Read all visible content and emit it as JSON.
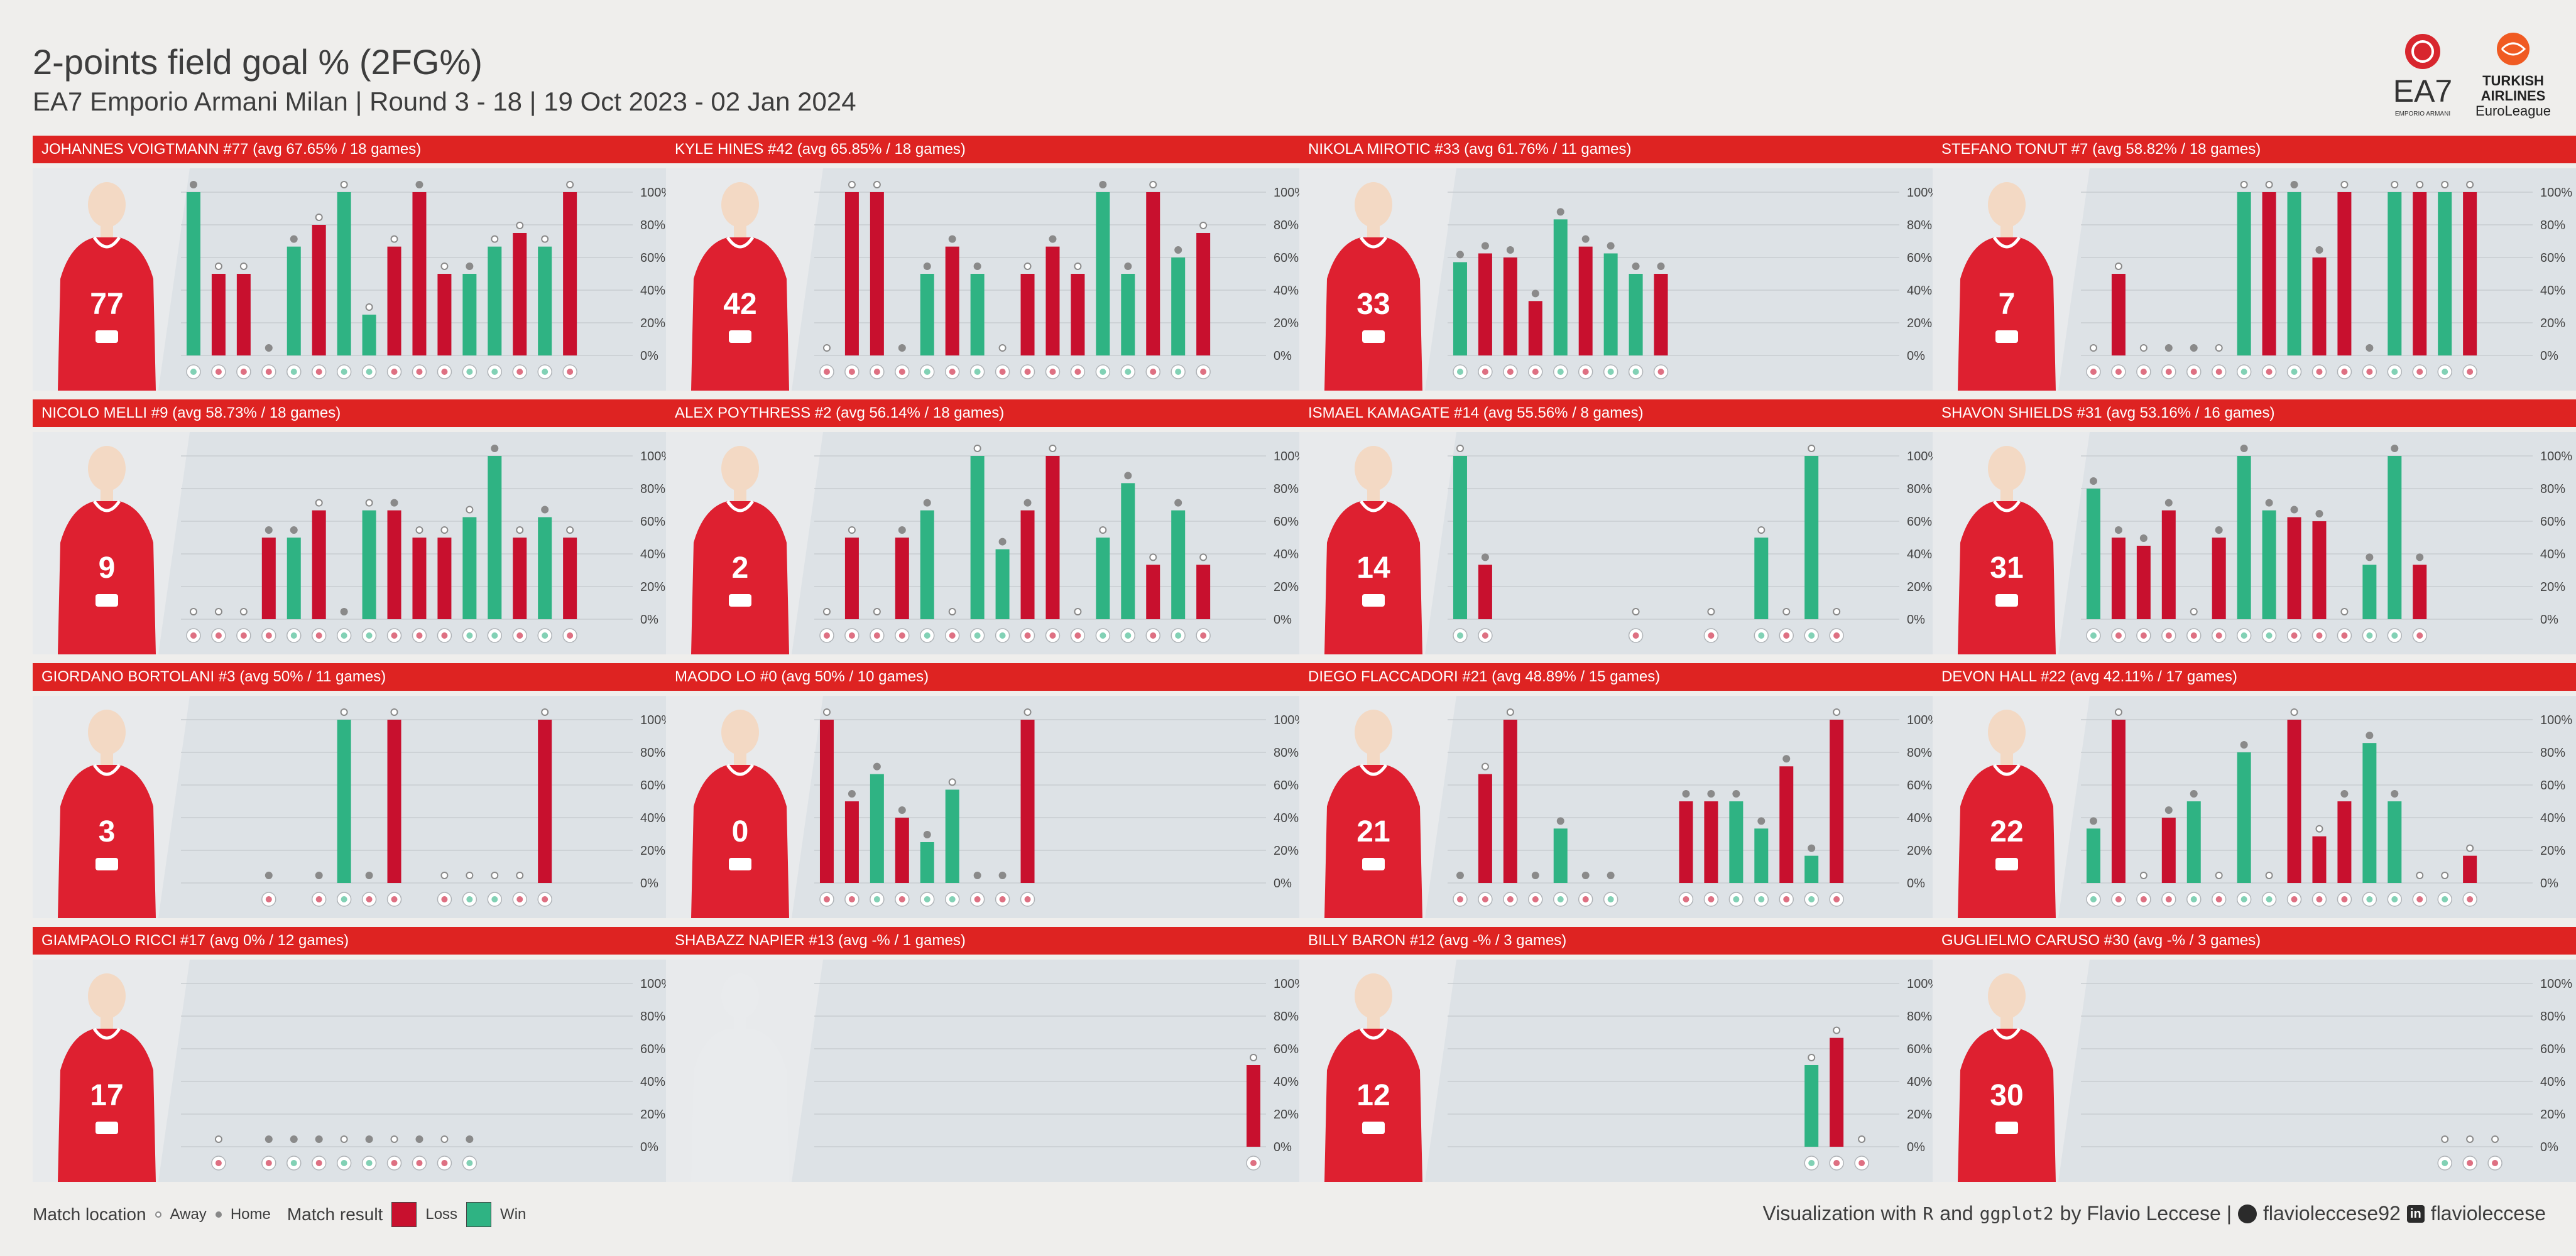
{
  "header": {
    "title": "2-points field goal % (2FG%)",
    "subtitle": "EA7 Emporio Armani Milan | Round 3 - 18 | 19 Oct 2023 - 02 Jan 2024"
  },
  "logos": {
    "left_text": "EA7",
    "left_sub": "EMPORIO ARMANI",
    "right_text_1": "TURKISH",
    "right_text_2": "AIRLINES",
    "right_text_3": "EuroLeague"
  },
  "colors": {
    "loss": "#c8102e",
    "win": "#2fb383",
    "header": "#de2322",
    "panel_bg": "#e3e7ea",
    "jersey": "#de2030"
  },
  "axis_ticks": [
    "0%",
    "20%",
    "40%",
    "60%",
    "80%",
    "100%"
  ],
  "chart_data": [
    {
      "type": "bar",
      "title": "JOHANNES VOIGTMANN #77 (avg 67.65% / 18 games)",
      "jersey": "77",
      "ylim": [
        0,
        100
      ],
      "x": [
        1,
        2,
        3,
        4,
        5,
        6,
        7,
        8,
        9,
        10,
        11,
        12,
        13,
        14,
        15,
        16,
        17,
        18
      ],
      "values": [
        100,
        50,
        50,
        0,
        66.67,
        80,
        100,
        25,
        66.67,
        100,
        50,
        50,
        66.67,
        75,
        66.67,
        100,
        null,
        null
      ],
      "results": [
        "W",
        "L",
        "L",
        "L",
        "W",
        "L",
        "W",
        "W",
        "L",
        "L",
        "L",
        "W",
        "W",
        "L",
        "W",
        "L",
        null,
        null
      ],
      "location": [
        "H",
        "A",
        "A",
        "H",
        "H",
        "A",
        "A",
        "A",
        "A",
        "H",
        "A",
        "H",
        "A",
        "A",
        "A",
        "A",
        null,
        null
      ]
    },
    {
      "type": "bar",
      "title": "KYLE HINES #42 (avg 65.85% / 18 games)",
      "jersey": "42",
      "ylim": [
        0,
        100
      ],
      "x": [
        1,
        2,
        3,
        4,
        5,
        6,
        7,
        8,
        9,
        10,
        11,
        12,
        13,
        14,
        15,
        16,
        17,
        18
      ],
      "values": [
        0,
        100,
        100,
        0,
        50,
        66.67,
        50,
        0,
        50,
        66.67,
        50,
        100,
        50,
        100,
        60,
        75,
        null,
        null
      ],
      "results": [
        "L",
        "L",
        "L",
        "L",
        "W",
        "L",
        "W",
        "L",
        "L",
        "L",
        "L",
        "W",
        "W",
        "L",
        "W",
        "L",
        null,
        null
      ],
      "location": [
        "A",
        "A",
        "A",
        "H",
        "H",
        "H",
        "H",
        "A",
        "A",
        "H",
        "A",
        "H",
        "H",
        "A",
        "H",
        "A",
        null,
        null
      ]
    },
    {
      "type": "bar",
      "title": "NIKOLA MIROTIC #33 (avg 61.76% / 11 games)",
      "jersey": "33",
      "ylim": [
        0,
        100
      ],
      "x": [
        1,
        2,
        3,
        4,
        5,
        6,
        7,
        8,
        9,
        10,
        11
      ],
      "values": [
        57.14,
        62.5,
        60,
        33.33,
        83.33,
        66.67,
        62.5,
        50,
        50,
        null,
        null
      ],
      "results": [
        "W",
        "L",
        "L",
        "L",
        "W",
        "L",
        "W",
        "W",
        "L",
        null,
        null
      ],
      "location": [
        "H",
        "H",
        "H",
        "H",
        "H",
        "H",
        "H",
        "H",
        "H",
        null,
        null
      ]
    },
    {
      "type": "bar",
      "title": "STEFANO TONUT #7 (avg 58.82% / 18 games)",
      "jersey": "7",
      "ylim": [
        0,
        100
      ],
      "x": [
        1,
        2,
        3,
        4,
        5,
        6,
        7,
        8,
        9,
        10,
        11,
        12,
        13,
        14,
        15,
        16,
        17,
        18
      ],
      "values": [
        0,
        50,
        0,
        0,
        0,
        0,
        100,
        100,
        100,
        60,
        100,
        0,
        100,
        100,
        100,
        100,
        null,
        null
      ],
      "results": [
        "L",
        "L",
        "L",
        "L",
        "L",
        "L",
        "W",
        "L",
        "W",
        "L",
        "L",
        "L",
        "W",
        "L",
        "W",
        "L",
        null,
        null
      ],
      "location": [
        "A",
        "A",
        "A",
        "H",
        "H",
        "A",
        "A",
        "A",
        "H",
        "H",
        "A",
        "H",
        "A",
        "A",
        "A",
        "A",
        null,
        null
      ]
    },
    {
      "type": "bar",
      "title": "NICOLO MELLI #9 (avg 58.73% / 18 games)",
      "jersey": "9",
      "ylim": [
        0,
        100
      ],
      "x": [
        1,
        2,
        3,
        4,
        5,
        6,
        7,
        8,
        9,
        10,
        11,
        12,
        13,
        14,
        15,
        16,
        17,
        18
      ],
      "values": [
        0,
        0,
        0,
        50,
        50,
        66.67,
        0,
        66.67,
        66.67,
        50,
        50,
        62.5,
        100,
        50,
        62.5,
        50,
        null,
        null
      ],
      "results": [
        "L",
        "L",
        "L",
        "L",
        "W",
        "L",
        "W",
        "W",
        "L",
        "L",
        "L",
        "W",
        "W",
        "L",
        "W",
        "L",
        null,
        null
      ],
      "location": [
        "A",
        "A",
        "A",
        "H",
        "H",
        "A",
        "H",
        "A",
        "H",
        "A",
        "A",
        "A",
        "H",
        "A",
        "H",
        "A",
        null,
        null
      ]
    },
    {
      "type": "bar",
      "title": "ALEX POYTHRESS #2 (avg 56.14% / 18 games)",
      "jersey": "2",
      "ylim": [
        0,
        100
      ],
      "x": [
        1,
        2,
        3,
        4,
        5,
        6,
        7,
        8,
        9,
        10,
        11,
        12,
        13,
        14,
        15,
        16,
        17,
        18
      ],
      "values": [
        0,
        50,
        0,
        50,
        66.67,
        0,
        100,
        42.86,
        66.67,
        100,
        0,
        50,
        83.33,
        33.33,
        66.67,
        33.33,
        null,
        null
      ],
      "results": [
        "L",
        "L",
        "L",
        "L",
        "W",
        "L",
        "W",
        "W",
        "L",
        "L",
        "L",
        "W",
        "W",
        "L",
        "W",
        "L",
        null,
        null
      ],
      "location": [
        "A",
        "A",
        "A",
        "H",
        "H",
        "A",
        "A",
        "H",
        "H",
        "A",
        "A",
        "A",
        "H",
        "A",
        "H",
        "A",
        null,
        null
      ]
    },
    {
      "type": "bar",
      "title": "ISMAEL KAMAGATE #14 (avg 55.56% / 8 games)",
      "jersey": "14",
      "ylim": [
        0,
        100
      ],
      "x": [
        1,
        2,
        3,
        4,
        5,
        6,
        7,
        8,
        9,
        10,
        11,
        12,
        13,
        14,
        15,
        16,
        17,
        18
      ],
      "values": [
        100,
        33.33,
        null,
        null,
        null,
        null,
        null,
        0,
        null,
        null,
        0,
        null,
        50,
        0,
        100,
        0,
        null,
        null
      ],
      "results": [
        "W",
        "L",
        null,
        null,
        null,
        null,
        null,
        "L",
        null,
        null,
        "L",
        null,
        "W",
        "L",
        "W",
        "L",
        null,
        null
      ],
      "location": [
        "A",
        "H",
        null,
        null,
        null,
        null,
        null,
        "A",
        null,
        null,
        "A",
        null,
        "A",
        "A",
        "A",
        "A",
        null,
        null
      ]
    },
    {
      "type": "bar",
      "title": "SHAVON SHIELDS #31 (avg 53.16% / 16 games)",
      "jersey": "31",
      "ylim": [
        0,
        100
      ],
      "x": [
        1,
        2,
        3,
        4,
        5,
        6,
        7,
        8,
        9,
        10,
        11,
        12,
        13,
        14,
        15,
        16
      ],
      "values": [
        80,
        50,
        45,
        66.67,
        0,
        50,
        100,
        66.67,
        62.5,
        60,
        0,
        33.33,
        100,
        33.33,
        null,
        null
      ],
      "results": [
        "W",
        "L",
        "L",
        "L",
        "L",
        "L",
        "W",
        "W",
        "L",
        "L",
        "L",
        "W",
        "W",
        "L",
        null,
        null
      ],
      "location": [
        "H",
        "H",
        "H",
        "H",
        "A",
        "H",
        "H",
        "H",
        "H",
        "H",
        "A",
        "H",
        "H",
        "H",
        null,
        null
      ]
    },
    {
      "type": "bar",
      "title": "GIORDANO BORTOLANI #3 (avg 50% / 11 games)",
      "jersey": "3",
      "ylim": [
        0,
        100
      ],
      "x": [
        1,
        2,
        3,
        4,
        5,
        6,
        7,
        8,
        9,
        10,
        11,
        12,
        13,
        14,
        15,
        16,
        17,
        18
      ],
      "values": [
        null,
        null,
        null,
        0,
        null,
        0,
        100,
        0,
        100,
        null,
        0,
        0,
        0,
        0,
        100,
        null,
        null,
        null
      ],
      "results": [
        null,
        null,
        null,
        "L",
        null,
        "L",
        "W",
        "L",
        "L",
        null,
        "L",
        "W",
        "W",
        "L",
        "L",
        null,
        null,
        null
      ],
      "location": [
        null,
        null,
        null,
        "H",
        null,
        "H",
        "A",
        "H",
        "A",
        null,
        "A",
        "A",
        "A",
        "A",
        "A",
        null,
        null,
        null
      ]
    },
    {
      "type": "bar",
      "title": "MAODO LO #0 (avg 50% / 10 games)",
      "jersey": "0",
      "ylim": [
        0,
        100
      ],
      "x": [
        1,
        2,
        3,
        4,
        5,
        6,
        7,
        8,
        9,
        10,
        11,
        12
      ],
      "values": [
        100,
        50,
        66.67,
        40,
        25,
        57.14,
        0,
        0,
        100,
        null,
        null,
        null
      ],
      "results": [
        "L",
        "L",
        "W",
        "L",
        "W",
        "W",
        "L",
        "L",
        "L",
        null,
        null,
        null
      ],
      "location": [
        "A",
        "H",
        "H",
        "H",
        "H",
        "A",
        "H",
        "H",
        "A",
        null,
        null,
        null
      ]
    },
    {
      "type": "bar",
      "title": "DIEGO FLACCADORI #21 (avg 48.89% / 15 games)",
      "jersey": "21",
      "ylim": [
        0,
        100
      ],
      "x": [
        1,
        2,
        3,
        4,
        5,
        6,
        7,
        8,
        9,
        10,
        11,
        12,
        13,
        14,
        15,
        16,
        17,
        18
      ],
      "values": [
        0,
        66.67,
        100,
        0,
        33.33,
        0,
        0,
        null,
        null,
        50,
        50,
        50,
        33.33,
        71.43,
        16.67,
        100,
        null,
        null
      ],
      "results": [
        "L",
        "L",
        "L",
        "L",
        "W",
        "L",
        "W",
        null,
        null,
        "L",
        "L",
        "W",
        "W",
        "L",
        "W",
        "L",
        null,
        null
      ],
      "location": [
        "H",
        "A",
        "A",
        "H",
        "H",
        "H",
        "H",
        null,
        null,
        "H",
        "H",
        "H",
        "H",
        "H",
        "H",
        "A",
        null,
        null
      ]
    },
    {
      "type": "bar",
      "title": "DEVON HALL #22 (avg 42.11% / 17 games)",
      "jersey": "22",
      "ylim": [
        0,
        100
      ],
      "x": [
        1,
        2,
        3,
        4,
        5,
        6,
        7,
        8,
        9,
        10,
        11,
        12,
        13,
        14,
        15,
        16,
        17
      ],
      "values": [
        33.33,
        100,
        0,
        40,
        50,
        0,
        80,
        0,
        100,
        28.57,
        50,
        85.71,
        50,
        0,
        0,
        16.67,
        null
      ],
      "results": [
        "W",
        "L",
        "L",
        "L",
        "W",
        "L",
        "W",
        "W",
        "L",
        "L",
        "L",
        "W",
        "W",
        "L",
        "W",
        "L",
        null
      ],
      "location": [
        "H",
        "A",
        "A",
        "H",
        "H",
        "A",
        "H",
        "A",
        "A",
        "A",
        "H",
        "H",
        "H",
        "A",
        "A",
        "A",
        null
      ]
    },
    {
      "type": "bar",
      "title": "GIAMPAOLO RICCI #17 (avg 0% / 12 games)",
      "jersey": "17",
      "ylim": [
        0,
        100
      ],
      "x": [
        1,
        2,
        3,
        4,
        5,
        6,
        7,
        8,
        9,
        10,
        11,
        12,
        13,
        14,
        15,
        16,
        17,
        18
      ],
      "values": [
        null,
        0,
        null,
        0,
        0,
        0,
        0,
        0,
        0,
        0,
        0,
        0,
        null,
        null,
        null,
        null,
        null,
        null
      ],
      "results": [
        null,
        "L",
        null,
        "L",
        "W",
        "L",
        "W",
        "W",
        "L",
        "L",
        "L",
        "W",
        null,
        null,
        null,
        null,
        null,
        null
      ],
      "location": [
        null,
        "A",
        null,
        "H",
        "H",
        "H",
        "A",
        "H",
        "A",
        "H",
        "A",
        "H",
        null,
        null,
        null,
        null,
        null,
        null
      ]
    },
    {
      "type": "bar",
      "title": "SHABAZZ NAPIER #13 (avg -% / 1 games)",
      "jersey": "",
      "ylim": [
        0,
        100
      ],
      "x": [
        1,
        2,
        3,
        4,
        5,
        6,
        7,
        8,
        9,
        10,
        11,
        12,
        13,
        14,
        15,
        16,
        17,
        18
      ],
      "values": [
        null,
        null,
        null,
        null,
        null,
        null,
        null,
        null,
        null,
        null,
        null,
        null,
        null,
        null,
        null,
        null,
        null,
        50
      ],
      "results": [
        null,
        null,
        null,
        null,
        null,
        null,
        null,
        null,
        null,
        null,
        null,
        null,
        null,
        null,
        null,
        null,
        null,
        "L"
      ],
      "location": [
        null,
        null,
        null,
        null,
        null,
        null,
        null,
        null,
        null,
        null,
        null,
        null,
        null,
        null,
        null,
        null,
        null,
        "A"
      ]
    },
    {
      "type": "bar",
      "title": "BILLY BARON #12 (avg -% / 3 games)",
      "jersey": "12",
      "ylim": [
        0,
        100
      ],
      "x": [
        1,
        2,
        3,
        4,
        5,
        6,
        7,
        8,
        9,
        10,
        11,
        12,
        13,
        14,
        15,
        16,
        17,
        18
      ],
      "values": [
        null,
        null,
        null,
        null,
        null,
        null,
        null,
        null,
        null,
        null,
        null,
        null,
        null,
        null,
        50,
        66.67,
        0,
        null
      ],
      "results": [
        null,
        null,
        null,
        null,
        null,
        null,
        null,
        null,
        null,
        null,
        null,
        null,
        null,
        null,
        "W",
        "L",
        "L",
        null
      ],
      "location": [
        null,
        null,
        null,
        null,
        null,
        null,
        null,
        null,
        null,
        null,
        null,
        null,
        null,
        null,
        "A",
        "A",
        "A",
        null
      ]
    },
    {
      "type": "bar",
      "title": "GUGLIELMO CARUSO #30 (avg -% / 3 games)",
      "jersey": "30",
      "ylim": [
        0,
        100
      ],
      "x": [
        1,
        2,
        3,
        4,
        5,
        6,
        7,
        8,
        9,
        10,
        11,
        12,
        13,
        14,
        15,
        16,
        17,
        18
      ],
      "values": [
        null,
        null,
        null,
        null,
        null,
        null,
        null,
        null,
        null,
        null,
        null,
        null,
        null,
        null,
        0,
        0,
        0,
        null
      ],
      "results": [
        null,
        null,
        null,
        null,
        null,
        null,
        null,
        null,
        null,
        null,
        null,
        null,
        null,
        null,
        "W",
        "L",
        "L",
        null
      ],
      "location": [
        null,
        null,
        null,
        null,
        null,
        null,
        null,
        null,
        null,
        null,
        null,
        null,
        null,
        null,
        "A",
        "A",
        "A",
        null
      ]
    }
  ],
  "legend": {
    "location_title": "Match location",
    "away_label": "Away",
    "home_label": "Home",
    "result_title": "Match result",
    "loss_label": "Loss",
    "win_label": "Win"
  },
  "credit": {
    "pre": "Visualization with",
    "r": "R",
    "and": "and",
    "pkg": "ggplot2",
    "by": "by Flavio Leccese |",
    "github": "flavioleccese92",
    "linkedin": "flavioleccese"
  }
}
